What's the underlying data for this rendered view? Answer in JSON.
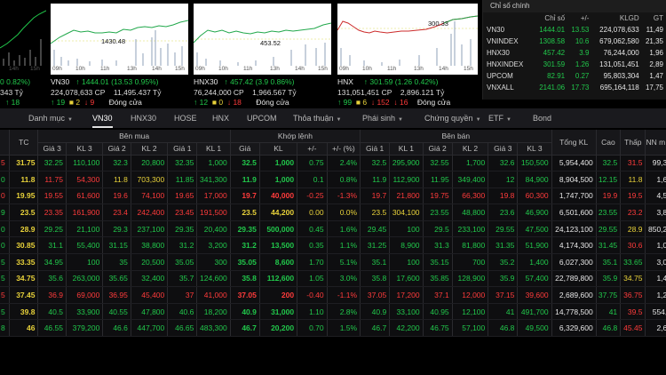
{
  "charts": [
    {
      "label": "",
      "change": "0 0.82%)",
      "line2": "343 Tỷ",
      "line3": "18",
      "times": [
        "14h",
        "15h"
      ]
    },
    {
      "label": "VN30",
      "value": "1444.01",
      "change": "(13.53 0.95%)",
      "volume": "224,078,633 CP",
      "value_traded": "11,495.437 Tỷ",
      "adv": "19",
      "ref": "2",
      "dec": "9",
      "status": "Đóng cửa",
      "peak": "1430.48",
      "times": [
        "09h",
        "10h",
        "11h",
        "13h",
        "14h",
        "15h"
      ]
    },
    {
      "label": "HNX30",
      "value": "457.42",
      "change": "(3.9 0.86%)",
      "volume": "76,244,000 CP",
      "value_traded": "1,966.567 Tỷ",
      "adv": "12",
      "ref": "0",
      "dec": "18",
      "status": "Đóng cửa",
      "peak": "453.52",
      "times": [
        "09h",
        "10h",
        "11h",
        "13h",
        "14h",
        "15h"
      ]
    },
    {
      "label": "HNX",
      "value": "301.59",
      "change": "(1.26 0.42%)",
      "volume": "131,051,451 CP",
      "value_traded": "2,896.121 Tỷ",
      "adv": "99",
      "ref": "6",
      "dec": "152",
      "dec2": "16",
      "status": "Đóng cửa",
      "peak": "300.33",
      "times": [
        "09h",
        "10h",
        "11h",
        "13h",
        "14h",
        "15h"
      ]
    }
  ],
  "summary": {
    "tab": "Chỉ số chính",
    "headers": [
      "",
      "Chỉ số",
      "+/-",
      "KLGD",
      "GT"
    ],
    "rows": [
      {
        "name": "VN30",
        "index": "1444.01",
        "chg": "13.53",
        "vol": "224,078,633",
        "val": "11,49",
        "cls": "g"
      },
      {
        "name": "VNINDEX",
        "index": "1308.58",
        "chg": "10.6",
        "vol": "679,062,580",
        "val": "21,35",
        "cls": "g"
      },
      {
        "name": "HNX30",
        "index": "457.42",
        "chg": "3.9",
        "vol": "76,244,000",
        "val": "1,96",
        "cls": "g"
      },
      {
        "name": "HNXINDEX",
        "index": "301.59",
        "chg": "1.26",
        "vol": "131,051,451",
        "val": "2,89",
        "cls": "g"
      },
      {
        "name": "UPCOM",
        "index": "82.91",
        "chg": "0.27",
        "vol": "95,803,304",
        "val": "1,47",
        "cls": "g"
      },
      {
        "name": "VNXALL",
        "index": "2141.06",
        "chg": "17.73",
        "vol": "695,164,118",
        "val": "17,75",
        "cls": "g"
      }
    ]
  },
  "tabs": [
    {
      "label": "Danh mục",
      "dropdown": true
    },
    {
      "label": "VN30",
      "active": true
    },
    {
      "label": "HNX30"
    },
    {
      "label": "HOSE"
    },
    {
      "label": "HNX"
    },
    {
      "label": "UPCOM"
    },
    {
      "label": "Thỏa thuận",
      "dropdown": true
    },
    {
      "label": "Phái sinh",
      "dropdown": true
    },
    {
      "label": "Chứng quyền",
      "dropdown": true
    },
    {
      "label": "ETF",
      "dropdown": true
    },
    {
      "label": "Bond"
    }
  ],
  "board": {
    "groups": {
      "buy": "Bên mua",
      "match": "Khớp lệnh",
      "sell": "Bên bán"
    },
    "headers": [
      "",
      "TC",
      "Giá 3",
      "KL 3",
      "Giá 2",
      "KL 2",
      "Giá 1",
      "KL 1",
      "Giá",
      "KL",
      "+/-",
      "+/- (%)",
      "Giá 1",
      "KL 1",
      "Giá 2",
      "KL 2",
      "Giá 3",
      "KL 3",
      "Tổng KL",
      "Cao",
      "Thấp",
      "NN m"
    ],
    "rows": [
      {
        "sym": "5",
        "cells": [
          "31.75",
          "32.25",
          "110,100",
          "32.3",
          "20,800",
          "32.35",
          "1,000",
          "32.5",
          "1,000",
          "0.75",
          "2.4%",
          "32.5",
          "295,900",
          "32.55",
          "1,700",
          "32.6",
          "150,500",
          "5,954,400",
          "32.5",
          "31.5",
          "99,30"
        ],
        "c": [
          "y",
          "g",
          "g",
          "g",
          "g",
          "g",
          "g",
          "g",
          "g",
          "g",
          "g",
          "g",
          "g",
          "g",
          "g",
          "g",
          "g",
          "w",
          "g",
          "r",
          "w"
        ]
      },
      {
        "sym": "0",
        "cells": [
          "11.8",
          "11.75",
          "54,300",
          "11.8",
          "703,300",
          "11.85",
          "341,300",
          "11.9",
          "1,000",
          "0.1",
          "0.8%",
          "11.9",
          "112,900",
          "11.95",
          "349,400",
          "12",
          "84,900",
          "8,904,500",
          "12.15",
          "11.8",
          "1,60"
        ],
        "c": [
          "y",
          "r",
          "r",
          "y",
          "y",
          "g",
          "g",
          "g",
          "g",
          "g",
          "g",
          "g",
          "g",
          "g",
          "g",
          "g",
          "g",
          "w",
          "g",
          "y",
          "w"
        ]
      },
      {
        "sym": "0",
        "cells": [
          "19.95",
          "19.55",
          "61,600",
          "19.6",
          "74,100",
          "19.65",
          "17,000",
          "19.7",
          "40,000",
          "-0.25",
          "-1.3%",
          "19.7",
          "21,800",
          "19.75",
          "66,300",
          "19.8",
          "60,300",
          "1,747,700",
          "19.9",
          "19.5",
          "4,56"
        ],
        "c": [
          "y",
          "r",
          "r",
          "r",
          "r",
          "r",
          "r",
          "r",
          "r",
          "r",
          "r",
          "r",
          "r",
          "r",
          "r",
          "r",
          "r",
          "w",
          "r",
          "r",
          "w"
        ]
      },
      {
        "sym": "9",
        "cells": [
          "23.5",
          "23.35",
          "161,900",
          "23.4",
          "242,400",
          "23.45",
          "191,500",
          "23.5",
          "44,200",
          "0.00",
          "0.0%",
          "23.5",
          "304,100",
          "23.55",
          "48,800",
          "23.6",
          "46,900",
          "6,501,600",
          "23.55",
          "23.2",
          "3,80"
        ],
        "c": [
          "y",
          "r",
          "r",
          "r",
          "r",
          "r",
          "r",
          "y",
          "y",
          "y",
          "y",
          "y",
          "y",
          "g",
          "g",
          "g",
          "g",
          "w",
          "g",
          "r",
          "w"
        ]
      },
      {
        "sym": "0",
        "cells": [
          "28.9",
          "29.25",
          "21,100",
          "29.3",
          "237,100",
          "29.35",
          "20,400",
          "29.35",
          "500,000",
          "0.45",
          "1.6%",
          "29.45",
          "100",
          "29.5",
          "233,100",
          "29.55",
          "47,500",
          "24,123,100",
          "29.55",
          "28.9",
          "850,20"
        ],
        "c": [
          "y",
          "g",
          "g",
          "g",
          "g",
          "g",
          "g",
          "g",
          "g",
          "g",
          "g",
          "g",
          "g",
          "g",
          "g",
          "g",
          "g",
          "w",
          "g",
          "y",
          "w"
        ]
      },
      {
        "sym": "0",
        "cells": [
          "30.85",
          "31.1",
          "55,400",
          "31.15",
          "38,800",
          "31.2",
          "3,200",
          "31.2",
          "13,500",
          "0.35",
          "1.1%",
          "31.25",
          "8,900",
          "31.3",
          "81,800",
          "31.35",
          "51,900",
          "4,174,300",
          "31.45",
          "30.6",
          "1,09"
        ],
        "c": [
          "y",
          "g",
          "g",
          "g",
          "g",
          "g",
          "g",
          "g",
          "g",
          "g",
          "g",
          "g",
          "g",
          "g",
          "g",
          "g",
          "g",
          "w",
          "g",
          "r",
          "w"
        ]
      },
      {
        "sym": "5",
        "cells": [
          "33.35",
          "34.95",
          "100",
          "35",
          "20,500",
          "35.05",
          "300",
          "35.05",
          "8,600",
          "1.70",
          "5.1%",
          "35.1",
          "100",
          "35.15",
          "700",
          "35.2",
          "1,400",
          "6,027,300",
          "35.1",
          "33.65",
          "3,05"
        ],
        "c": [
          "y",
          "g",
          "g",
          "g",
          "g",
          "g",
          "g",
          "g",
          "g",
          "g",
          "g",
          "g",
          "g",
          "g",
          "g",
          "g",
          "g",
          "w",
          "g",
          "g",
          "w"
        ]
      },
      {
        "sym": "5",
        "cells": [
          "34.75",
          "35.6",
          "263,000",
          "35.65",
          "32,400",
          "35.7",
          "124,600",
          "35.8",
          "112,600",
          "1.05",
          "3.0%",
          "35.8",
          "17,600",
          "35.85",
          "128,900",
          "35.9",
          "57,400",
          "22,789,800",
          "35.9",
          "34.75",
          "1,48"
        ],
        "c": [
          "y",
          "g",
          "g",
          "g",
          "g",
          "g",
          "g",
          "g",
          "g",
          "g",
          "g",
          "g",
          "g",
          "g",
          "g",
          "g",
          "g",
          "w",
          "g",
          "y",
          "w"
        ]
      },
      {
        "sym": "5",
        "cells": [
          "37.45",
          "36.9",
          "69,000",
          "36.95",
          "45,400",
          "37",
          "41,000",
          "37.05",
          "200",
          "-0.40",
          "-1.1%",
          "37.05",
          "17,200",
          "37.1",
          "12,000",
          "37.15",
          "39,600",
          "2,689,600",
          "37.75",
          "36.75",
          "1,21"
        ],
        "c": [
          "y",
          "r",
          "r",
          "r",
          "r",
          "r",
          "r",
          "r",
          "r",
          "r",
          "r",
          "r",
          "r",
          "r",
          "r",
          "r",
          "r",
          "w",
          "g",
          "r",
          "w"
        ]
      },
      {
        "sym": "5",
        "cells": [
          "39.8",
          "40.5",
          "33,900",
          "40.55",
          "47,800",
          "40.6",
          "18,200",
          "40.9",
          "31,000",
          "1.10",
          "2.8%",
          "40.9",
          "33,100",
          "40.95",
          "12,100",
          "41",
          "491,700",
          "14,778,500",
          "41",
          "39.5",
          "554,0"
        ],
        "c": [
          "y",
          "g",
          "g",
          "g",
          "g",
          "g",
          "g",
          "g",
          "g",
          "g",
          "g",
          "g",
          "g",
          "g",
          "g",
          "g",
          "g",
          "w",
          "g",
          "r",
          "w"
        ]
      },
      {
        "sym": "8",
        "cells": [
          "46",
          "46.55",
          "379,200",
          "46.6",
          "447,700",
          "46.65",
          "483,300",
          "46.7",
          "20,200",
          "0.70",
          "1.5%",
          "46.7",
          "42,200",
          "46.75",
          "57,100",
          "46.8",
          "49,500",
          "6,329,600",
          "46.8",
          "45.45",
          "2,68"
        ],
        "c": [
          "y",
          "g",
          "g",
          "g",
          "g",
          "g",
          "g",
          "g",
          "g",
          "g",
          "g",
          "g",
          "g",
          "g",
          "g",
          "g",
          "g",
          "w",
          "g",
          "r",
          "w"
        ]
      }
    ],
    "sym_colors": [
      "r",
      "g",
      "r",
      "g",
      "g",
      "g",
      "g",
      "g",
      "r",
      "g",
      "g"
    ]
  }
}
